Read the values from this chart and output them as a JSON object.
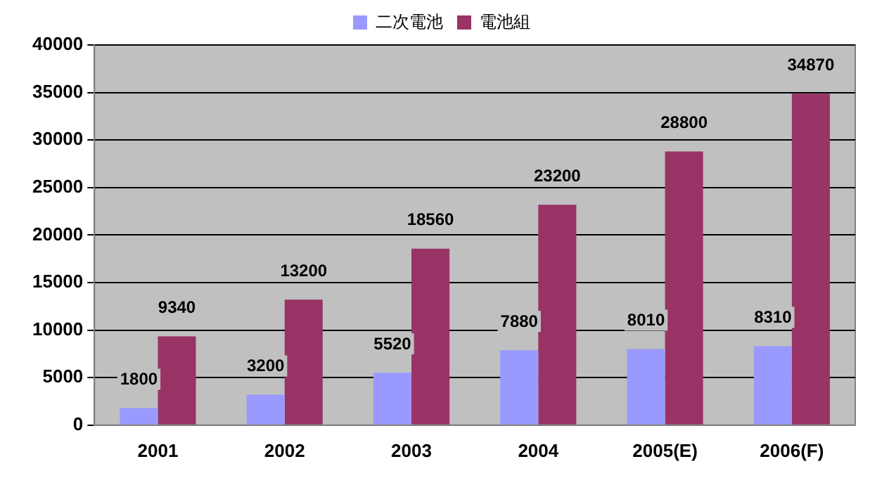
{
  "chart_data": {
    "type": "bar",
    "categories": [
      "2001",
      "2002",
      "2003",
      "2004",
      "2005(E)",
      "2006(F)"
    ],
    "series": [
      {
        "name": "二次電池",
        "color": "#9999ff",
        "values": [
          1800,
          3200,
          5520,
          7880,
          8010,
          8310
        ]
      },
      {
        "name": "電池組",
        "color": "#993366",
        "values": [
          9340,
          13200,
          18560,
          23200,
          28800,
          34870
        ]
      }
    ],
    "ylim": [
      0,
      40000
    ],
    "yticks": [
      0,
      5000,
      10000,
      15000,
      20000,
      25000,
      30000,
      35000,
      40000
    ],
    "grid": "y",
    "legend": "top",
    "data_labels": true
  }
}
